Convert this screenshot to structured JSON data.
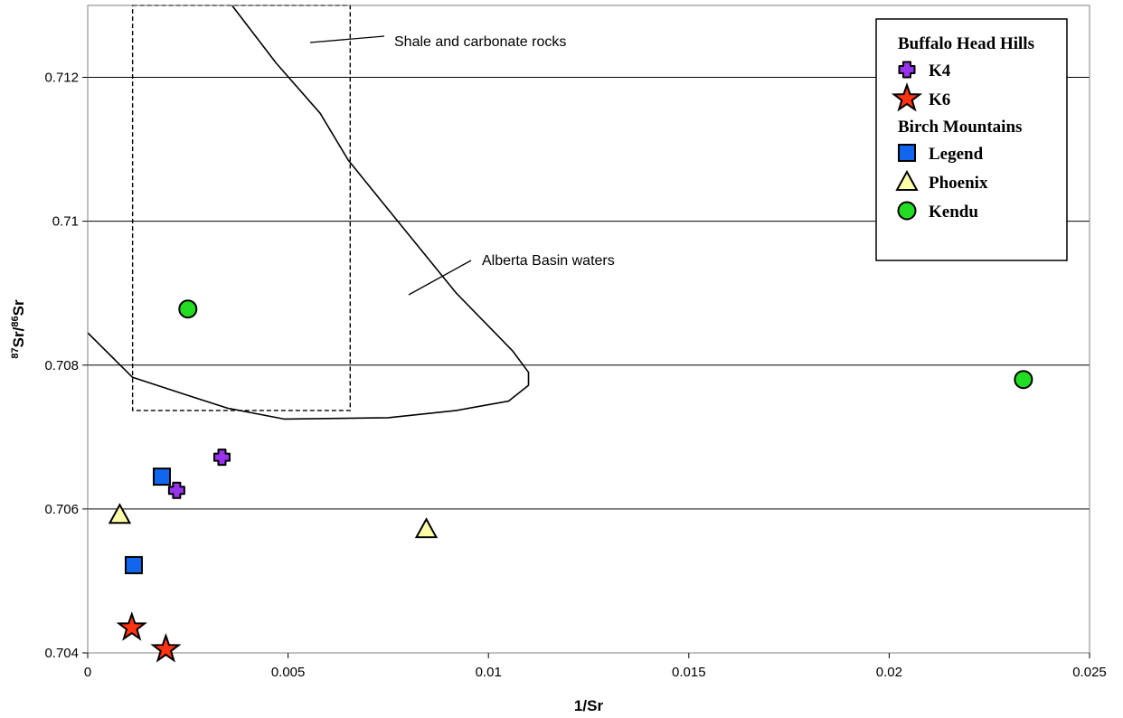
{
  "chart_data": {
    "type": "scatter",
    "title": "",
    "xlabel": "1/Sr",
    "ylabel_parts": [
      "87",
      "Sr/",
      "86",
      "Sr"
    ],
    "xlim": [
      0,
      0.025
    ],
    "ylim": [
      0.704,
      0.713
    ],
    "x_ticks": [
      0,
      0.005,
      0.01,
      0.015,
      0.02,
      0.025
    ],
    "x_tick_labels": [
      "0",
      "0.005",
      "0.01",
      "0.015",
      "0.02",
      "0.025"
    ],
    "y_ticks": [
      0.704,
      0.706,
      0.708,
      0.71,
      0.712
    ],
    "y_tick_labels": [
      "0.704",
      "0.706",
      "0.708",
      "0.71",
      "0.712"
    ],
    "grid": "horizontal",
    "legend_position": "top-right",
    "legend_groups": [
      {
        "heading": "Buffalo Head Hills",
        "series": [
          "K4",
          "K6"
        ]
      },
      {
        "heading": "Birch Mountains",
        "series": [
          "Legend",
          "Phoenix",
          "Kendu"
        ]
      }
    ],
    "series": [
      {
        "name": "K4",
        "marker": "cross",
        "color": "#9933ee",
        "points": [
          [
            0.00335,
            0.70672
          ],
          [
            0.00222,
            0.70626
          ]
        ]
      },
      {
        "name": "K6",
        "marker": "star",
        "color": "#ff3311",
        "points": [
          [
            0.0011,
            0.70435
          ],
          [
            0.00195,
            0.70405
          ]
        ]
      },
      {
        "name": "Legend",
        "marker": "square",
        "color": "#1166ee",
        "points": [
          [
            0.00185,
            0.70645
          ],
          [
            0.00115,
            0.70522
          ]
        ]
      },
      {
        "name": "Phoenix",
        "marker": "triangle",
        "color": "#ffffaa",
        "points": [
          [
            0.0008,
            0.70592
          ],
          [
            0.00845,
            0.70572
          ]
        ]
      },
      {
        "name": "Kendu",
        "marker": "circle",
        "color": "#22dd22",
        "points": [
          [
            0.0025,
            0.70878
          ],
          [
            0.02335,
            0.7078
          ]
        ]
      }
    ],
    "regions": [
      {
        "label": "Shale and carbonate rocks",
        "shape": "rectangle",
        "style": "dashed",
        "x_range": [
          0.00112,
          0.00655
        ],
        "y_range": [
          0.70737,
          0.713
        ]
      },
      {
        "label": "Alberta Basin waters",
        "shape": "outline",
        "style": "solid",
        "path": [
          [
            0.0,
            0.70845
          ],
          [
            0.00112,
            0.70783
          ],
          [
            0.0025,
            0.70758
          ],
          [
            0.0035,
            0.7074
          ],
          [
            0.0049,
            0.70725
          ],
          [
            0.0075,
            0.70727
          ],
          [
            0.0092,
            0.70737
          ],
          [
            0.0105,
            0.7075
          ],
          [
            0.011,
            0.70772
          ],
          [
            0.011,
            0.7079
          ],
          [
            0.0106,
            0.7082
          ],
          [
            0.0092,
            0.709
          ],
          [
            0.0073,
            0.7103
          ],
          [
            0.0065,
            0.71085
          ],
          [
            0.0058,
            0.7115
          ],
          [
            0.0047,
            0.7122
          ],
          [
            0.0036,
            0.713
          ]
        ]
      }
    ]
  }
}
